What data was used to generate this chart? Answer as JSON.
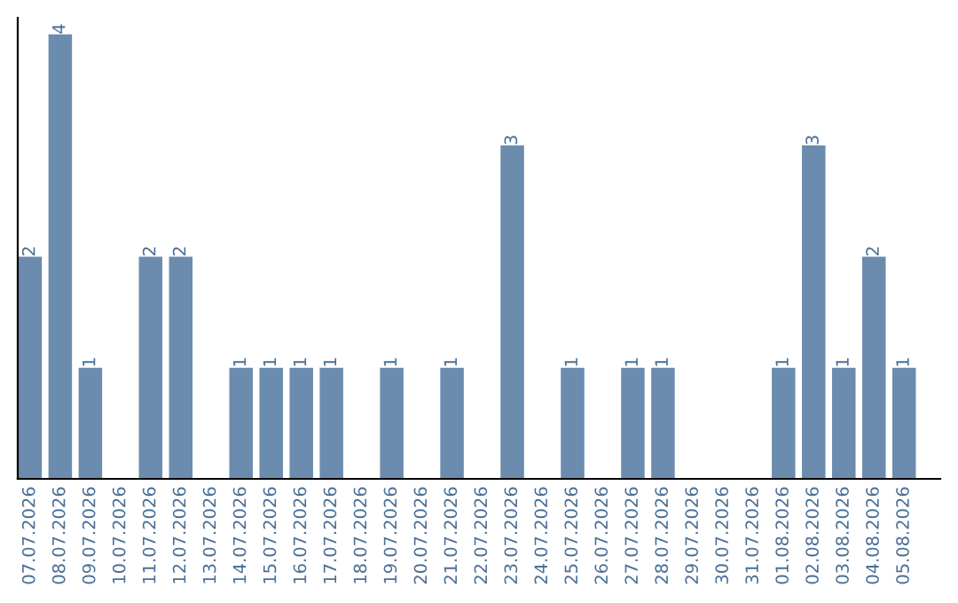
{
  "chart_data": {
    "type": "bar",
    "categories": [
      "07.07.2026",
      "08.07.2026",
      "09.07.2026",
      "10.07.2026",
      "11.07.2026",
      "12.07.2026",
      "13.07.2026",
      "14.07.2026",
      "15.07.2026",
      "16.07.2026",
      "17.07.2026",
      "18.07.2026",
      "19.07.2026",
      "20.07.2026",
      "21.07.2026",
      "22.07.2026",
      "23.07.2026",
      "24.07.2026",
      "25.07.2026",
      "26.07.2026",
      "27.07.2026",
      "28.07.2026",
      "29.07.2026",
      "30.07.2026",
      "31.07.2026",
      "01.08.2026",
      "02.08.2026",
      "03.08.2026",
      "04.08.2026",
      "05.08.2026"
    ],
    "values": [
      2,
      4,
      1,
      0,
      2,
      2,
      0,
      1,
      1,
      1,
      1,
      0,
      1,
      0,
      1,
      0,
      3,
      0,
      1,
      0,
      1,
      1,
      0,
      0,
      0,
      1,
      3,
      1,
      2,
      1
    ],
    "value_labels": [
      "2",
      "4",
      "1",
      null,
      "2",
      "2",
      null,
      "1",
      "1",
      "1",
      "1",
      null,
      "1",
      null,
      "1",
      null,
      "3",
      null,
      "1",
      null,
      "1",
      "1",
      null,
      null,
      null,
      "1",
      "3",
      "1",
      "2",
      "1"
    ],
    "color": "#6b8cae",
    "ylim": [
      0,
      4.15
    ],
    "grid": false,
    "legend": false
  }
}
